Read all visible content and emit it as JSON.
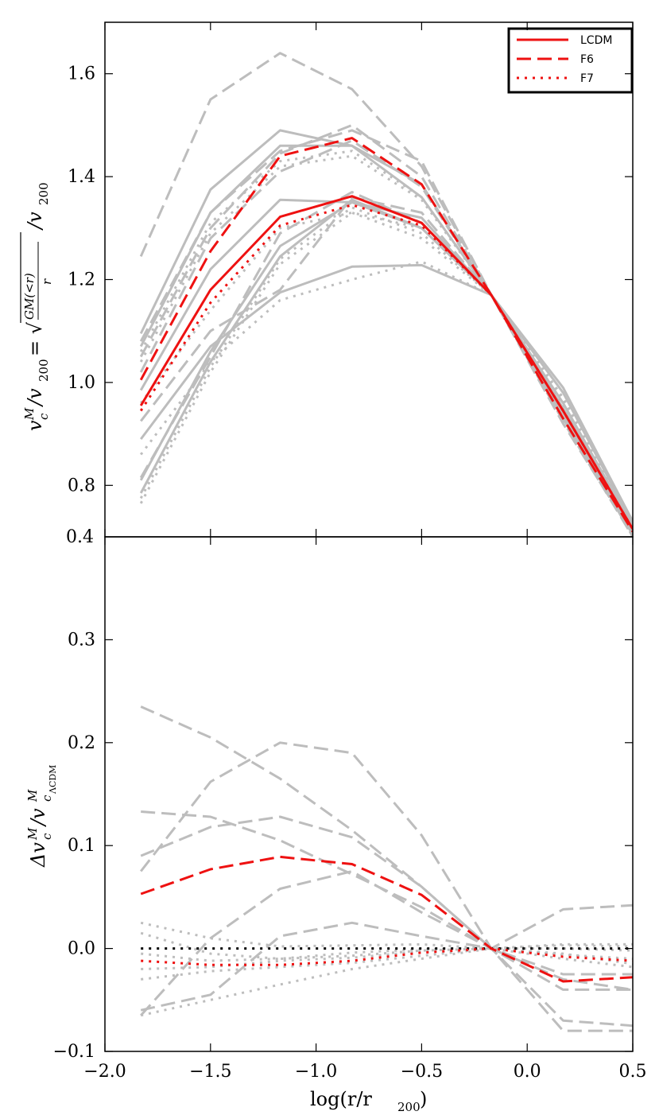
{
  "colors": {
    "highlight": "#ee1111",
    "background_lines": "#bdbdbd",
    "reference": "#000000",
    "frame": "#000000"
  },
  "chart_data": [
    {
      "type": "line",
      "panel": "top",
      "ylabel_main": "v_c^M / v_200 = √(GM(<r)/r) / v_200",
      "ylabel_parts": {
        "lhs": "v",
        "sup": "M",
        "sub": "c",
        "mid": "/v",
        "sub200": "200",
        "eq": " = √",
        "frac_num": "GM(<r)",
        "frac_den": "r",
        "rhs": "/v",
        "rhs_sub": "200"
      },
      "xlim": [
        -2.0,
        0.5
      ],
      "ylim": [
        0.7,
        1.7
      ],
      "yticks": [
        {
          "value": 0.8,
          "label": "0.8"
        },
        {
          "value": 1.0,
          "label": "1.0"
        },
        {
          "value": 1.2,
          "label": "1.2"
        },
        {
          "value": 1.4,
          "label": "1.4"
        },
        {
          "value": 1.6,
          "label": "1.6"
        }
      ],
      "bottom_label": "0.4",
      "x": [
        -1.83,
        -1.5,
        -1.17,
        -0.83,
        -0.5,
        -0.17,
        0.17,
        0.5
      ],
      "legend": {
        "position": "top-right",
        "entries": [
          {
            "label": "LCDM",
            "style": "solid"
          },
          {
            "label": "F6",
            "style": "dashed"
          },
          {
            "label": "F7",
            "style": "dotted"
          }
        ]
      },
      "highlight_series": [
        {
          "name": "LCDM",
          "style": "solid",
          "values": [
            0.955,
            1.18,
            1.322,
            1.362,
            1.31,
            1.17,
            0.945,
            0.715
          ]
        },
        {
          "name": "F6",
          "style": "dashed",
          "values": [
            1.005,
            1.255,
            1.44,
            1.475,
            1.385,
            1.17,
            0.93,
            0.71
          ]
        },
        {
          "name": "F7",
          "style": "dotted",
          "values": [
            0.945,
            1.155,
            1.305,
            1.345,
            1.305,
            1.17,
            0.945,
            0.715
          ]
        }
      ],
      "background_series": [
        {
          "style": "solid",
          "values": [
            1.095,
            1.375,
            1.49,
            1.46,
            1.385,
            1.17,
            0.99,
            0.73
          ]
        },
        {
          "style": "solid",
          "values": [
            1.07,
            1.33,
            1.46,
            1.46,
            1.36,
            1.17,
            0.98,
            0.725
          ]
        },
        {
          "style": "solid",
          "values": [
            0.985,
            1.22,
            1.355,
            1.35,
            1.32,
            1.17,
            0.96,
            0.72
          ]
        },
        {
          "style": "solid",
          "values": [
            0.89,
            1.07,
            1.175,
            1.225,
            1.228,
            1.17,
            0.95,
            0.715
          ]
        },
        {
          "style": "solid",
          "values": [
            0.81,
            1.06,
            1.265,
            1.35,
            1.3,
            1.17,
            0.945,
            0.715
          ]
        },
        {
          "style": "solid",
          "values": [
            0.785,
            1.04,
            1.245,
            1.355,
            1.3,
            1.17,
            0.94,
            0.71
          ]
        },
        {
          "style": "dashed",
          "values": [
            1.245,
            1.55,
            1.64,
            1.57,
            1.42,
            1.17,
            0.92,
            0.705
          ]
        },
        {
          "style": "dashed",
          "values": [
            1.08,
            1.33,
            1.45,
            1.49,
            1.43,
            1.17,
            0.93,
            0.705
          ]
        },
        {
          "style": "dashed",
          "values": [
            1.05,
            1.3,
            1.445,
            1.5,
            1.4,
            1.17,
            0.925,
            0.7
          ]
        },
        {
          "style": "dashed",
          "values": [
            1.02,
            1.28,
            1.41,
            1.47,
            1.38,
            1.17,
            0.935,
            0.705
          ]
        },
        {
          "style": "dashed",
          "values": [
            0.925,
            1.1,
            1.18,
            1.36,
            1.33,
            1.17,
            0.94,
            0.7
          ]
        },
        {
          "style": "dashed",
          "values": [
            0.815,
            1.05,
            1.29,
            1.37,
            1.31,
            1.17,
            0.945,
            0.71
          ]
        },
        {
          "style": "dotted",
          "values": [
            1.06,
            1.31,
            1.43,
            1.45,
            1.36,
            1.17,
            0.97,
            0.725
          ]
        },
        {
          "style": "dotted",
          "values": [
            1.04,
            1.29,
            1.42,
            1.44,
            1.355,
            1.17,
            0.965,
            0.72
          ]
        },
        {
          "style": "dotted",
          "values": [
            0.96,
            1.14,
            1.3,
            1.33,
            1.3,
            1.17,
            0.95,
            0.715
          ]
        },
        {
          "style": "dotted",
          "values": [
            0.86,
            1.04,
            1.16,
            1.2,
            1.235,
            1.17,
            0.955,
            0.715
          ]
        },
        {
          "style": "dotted",
          "values": [
            0.775,
            1.03,
            1.24,
            1.34,
            1.29,
            1.17,
            0.945,
            0.712
          ]
        },
        {
          "style": "dotted",
          "values": [
            0.765,
            1.02,
            1.23,
            1.33,
            1.28,
            1.17,
            0.94,
            0.71
          ]
        }
      ]
    },
    {
      "type": "line",
      "panel": "bottom",
      "ylabel_parts": {
        "lhs": "Δv",
        "sup": "M",
        "sub": "c",
        "mid": "/v",
        "sup2": "M",
        "sub2": "c",
        "sub3": "ΛCDM"
      },
      "xlabel": "log(r/r200)",
      "xlabel_parts": {
        "pre": "log(r/r",
        "sub": "200",
        "post": ")"
      },
      "xlim": [
        -2.0,
        0.5
      ],
      "ylim": [
        -0.1,
        0.4
      ],
      "xticks": [
        {
          "value": -2.0,
          "label": "−2.0"
        },
        {
          "value": -1.5,
          "label": "−1.5"
        },
        {
          "value": -1.0,
          "label": "−1.0"
        },
        {
          "value": -0.5,
          "label": "−0.5"
        },
        {
          "value": 0.0,
          "label": "0.0"
        },
        {
          "value": 0.5,
          "label": "0.5"
        }
      ],
      "yticks": [
        {
          "value": -0.1,
          "label": "−0.1"
        },
        {
          "value": 0.0,
          "label": "0.0"
        },
        {
          "value": 0.1,
          "label": "0.1"
        },
        {
          "value": 0.2,
          "label": "0.2"
        },
        {
          "value": 0.3,
          "label": "0.3"
        }
      ],
      "x": [
        -1.83,
        -1.5,
        -1.17,
        -0.83,
        -0.5,
        -0.17,
        0.17,
        0.5
      ],
      "reference_series": {
        "name": "zero",
        "style": "dotted",
        "values": [
          0,
          0,
          0,
          0,
          0,
          0,
          0,
          0
        ]
      },
      "highlight_series": [
        {
          "name": "F6",
          "style": "dashed",
          "values": [
            0.053,
            0.077,
            0.089,
            0.082,
            0.052,
            0.0,
            -0.032,
            -0.028
          ]
        },
        {
          "name": "F7",
          "style": "dotted",
          "values": [
            -0.012,
            -0.016,
            -0.016,
            -0.012,
            -0.004,
            0.0,
            -0.008,
            -0.012
          ]
        }
      ],
      "background_series": [
        {
          "style": "dashed",
          "values": [
            0.235,
            0.205,
            0.165,
            0.115,
            0.06,
            0.0,
            -0.03,
            -0.04
          ]
        },
        {
          "style": "dashed",
          "values": [
            0.133,
            0.128,
            0.105,
            0.072,
            0.04,
            0.0,
            -0.04,
            -0.04
          ]
        },
        {
          "style": "dashed",
          "values": [
            0.09,
            0.118,
            0.128,
            0.108,
            0.06,
            0.0,
            -0.07,
            -0.075
          ]
        },
        {
          "style": "dashed",
          "values": [
            0.075,
            0.162,
            0.2,
            0.19,
            0.11,
            0.0,
            -0.08,
            -0.08
          ]
        },
        {
          "style": "dashed",
          "values": [
            -0.06,
            -0.045,
            0.012,
            0.025,
            0.012,
            0.0,
            0.038,
            0.042
          ]
        },
        {
          "style": "dashed",
          "values": [
            -0.065,
            0.01,
            0.058,
            0.075,
            0.035,
            0.0,
            -0.025,
            -0.025
          ]
        },
        {
          "style": "dotted",
          "values": [
            0.025,
            0.01,
            0.002,
            0.003,
            0.004,
            0.0,
            0.004,
            0.004
          ]
        },
        {
          "style": "dotted",
          "values": [
            0.015,
            -0.005,
            -0.01,
            -0.007,
            -0.002,
            0.0,
            -0.01,
            -0.018
          ]
        },
        {
          "style": "dotted",
          "values": [
            -0.005,
            -0.012,
            -0.01,
            -0.004,
            -0.001,
            0.0,
            0.003,
            0.002
          ]
        },
        {
          "style": "dotted",
          "values": [
            -0.02,
            -0.018,
            -0.012,
            -0.009,
            -0.003,
            0.0,
            -0.005,
            -0.015
          ]
        },
        {
          "style": "dotted",
          "values": [
            -0.03,
            -0.022,
            -0.018,
            -0.014,
            -0.007,
            0.0,
            -0.006,
            -0.01
          ]
        },
        {
          "style": "dotted",
          "values": [
            -0.065,
            -0.05,
            -0.035,
            -0.02,
            -0.01,
            0.0,
            0.0,
            -0.002
          ]
        }
      ]
    }
  ]
}
